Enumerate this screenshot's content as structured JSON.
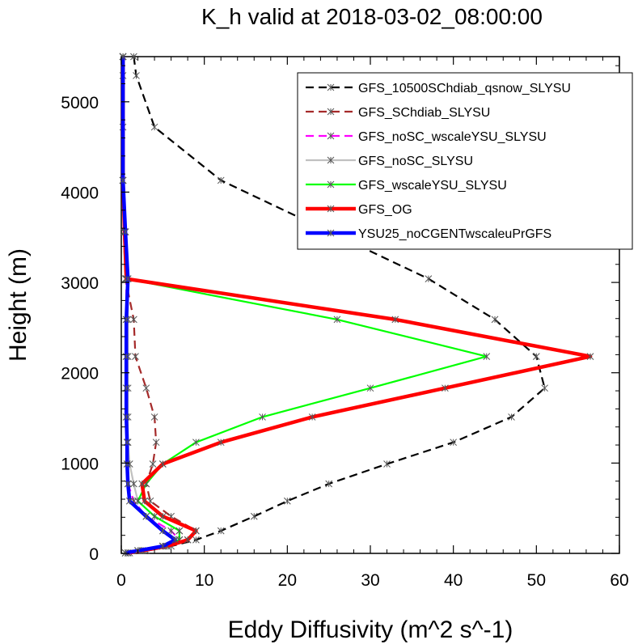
{
  "chart_data": {
    "type": "line",
    "title": "K_h valid at 2018-03-02_08:00:00",
    "xlabel": "Eddy Diffusivity (m^2 s^-1)",
    "ylabel": "Height (m)",
    "xlim": [
      0,
      60
    ],
    "ylim": [
      0,
      5500
    ],
    "xticks": [
      0,
      10,
      20,
      30,
      40,
      50,
      60
    ],
    "yticks": [
      0,
      1000,
      2000,
      3000,
      4000,
      5000
    ],
    "legend_position": "top-right",
    "grid": false,
    "series": [
      {
        "name": "GFS_10500SChdiab_qsnow_SLYSU",
        "color": "#000000",
        "width": 2.2,
        "dash": "10,6",
        "marker": "#555555",
        "points": [
          [
            1.5,
            5500
          ],
          [
            1.8,
            5290
          ],
          [
            4,
            4720
          ],
          [
            12,
            4130
          ],
          [
            37,
            3040
          ],
          [
            45,
            2590
          ],
          [
            50,
            2180
          ],
          [
            51,
            1830
          ],
          [
            47,
            1510
          ],
          [
            40,
            1230
          ],
          [
            32,
            990
          ],
          [
            25,
            770
          ],
          [
            20,
            580
          ],
          [
            16,
            410
          ],
          [
            12,
            250
          ],
          [
            9,
            150
          ],
          [
            6,
            80
          ],
          [
            3,
            30
          ],
          [
            1,
            5
          ]
        ]
      },
      {
        "name": "GFS_SChdiab_SLYSU",
        "color": "#a52a2a",
        "width": 2.2,
        "dash": "10,6",
        "marker": "#555555",
        "points": [
          [
            0.2,
            5500
          ],
          [
            0.2,
            5290
          ],
          [
            0.2,
            4720
          ],
          [
            0.2,
            4130
          ],
          [
            0.3,
            3560
          ],
          [
            0.5,
            3040
          ],
          [
            1.5,
            2590
          ],
          [
            1.7,
            2180
          ],
          [
            3,
            1830
          ],
          [
            4,
            1510
          ],
          [
            4.2,
            1230
          ],
          [
            3.8,
            990
          ],
          [
            3,
            770
          ],
          [
            3.5,
            580
          ],
          [
            6,
            410
          ],
          [
            9,
            250
          ],
          [
            8,
            150
          ],
          [
            5.5,
            80
          ],
          [
            2.5,
            30
          ],
          [
            0.8,
            5
          ]
        ]
      },
      {
        "name": "GFS_noSC_wscaleYSU_SLYSU",
        "color": "#ff00ff",
        "width": 2.2,
        "dash": "10,6",
        "marker": "#555555",
        "points": [
          [
            0.2,
            5500
          ],
          [
            0.2,
            4130
          ],
          [
            0.4,
            3560
          ],
          [
            0.6,
            3040
          ],
          [
            0.6,
            2590
          ],
          [
            0.6,
            2180
          ],
          [
            0.6,
            1830
          ],
          [
            0.6,
            1510
          ],
          [
            0.7,
            1230
          ],
          [
            0.7,
            990
          ],
          [
            0.8,
            770
          ],
          [
            1.5,
            580
          ],
          [
            3,
            410
          ],
          [
            6,
            250
          ],
          [
            7,
            150
          ],
          [
            5,
            80
          ],
          [
            2,
            30
          ],
          [
            0.5,
            5
          ]
        ]
      },
      {
        "name": "GFS_noSC_SLYSU",
        "color": "#c0c0c0",
        "width": 2.2,
        "dash": "",
        "marker": "#555555",
        "points": [
          [
            0.2,
            5500
          ],
          [
            0.2,
            4130
          ],
          [
            0.5,
            3560
          ],
          [
            0.8,
            3040
          ],
          [
            0.8,
            2590
          ],
          [
            0.8,
            2180
          ],
          [
            0.8,
            1830
          ],
          [
            0.8,
            1510
          ],
          [
            0.8,
            1230
          ],
          [
            1,
            990
          ],
          [
            1.5,
            770
          ],
          [
            2,
            580
          ],
          [
            4,
            410
          ],
          [
            7,
            250
          ],
          [
            7,
            150
          ],
          [
            5,
            80
          ],
          [
            2,
            30
          ],
          [
            0.5,
            5
          ]
        ]
      },
      {
        "name": "GFS_wscaleYSU_SLYSU",
        "color": "#00ff00",
        "width": 2.2,
        "dash": "",
        "marker": "#555555",
        "points": [
          [
            0.2,
            5500
          ],
          [
            0.2,
            4130
          ],
          [
            0.4,
            3560
          ],
          [
            0.6,
            3040
          ],
          [
            26,
            2590
          ],
          [
            44,
            2180
          ],
          [
            30,
            1830
          ],
          [
            17,
            1510
          ],
          [
            9,
            1230
          ],
          [
            5,
            990
          ],
          [
            3,
            770
          ],
          [
            2,
            580
          ],
          [
            4,
            410
          ],
          [
            7,
            250
          ],
          [
            7,
            150
          ],
          [
            5,
            80
          ],
          [
            2,
            30
          ],
          [
            0.5,
            5
          ]
        ]
      },
      {
        "name": "GFS_OG",
        "color": "#ff0000",
        "width": 4.5,
        "dash": "",
        "marker": "#555555",
        "points": [
          [
            0.2,
            5500
          ],
          [
            0.2,
            4130
          ],
          [
            0.4,
            3560
          ],
          [
            0.6,
            3040
          ],
          [
            33,
            2590
          ],
          [
            56.5,
            2180
          ],
          [
            39,
            1830
          ],
          [
            23,
            1510
          ],
          [
            12,
            1230
          ],
          [
            5,
            990
          ],
          [
            2.5,
            770
          ],
          [
            2.8,
            580
          ],
          [
            5,
            410
          ],
          [
            9,
            250
          ],
          [
            8,
            150
          ],
          [
            5.5,
            80
          ],
          [
            2.5,
            30
          ],
          [
            0.8,
            5
          ]
        ]
      },
      {
        "name": "YSU25_noCGENTwscaleuPrGFS",
        "color": "#0000ff",
        "width": 4.5,
        "dash": "",
        "marker": "#555555",
        "points": [
          [
            0.2,
            5500
          ],
          [
            0.2,
            4130
          ],
          [
            0.5,
            3560
          ],
          [
            0.8,
            3040
          ],
          [
            0.6,
            2590
          ],
          [
            0.6,
            2180
          ],
          [
            0.6,
            1830
          ],
          [
            0.6,
            1510
          ],
          [
            0.7,
            1230
          ],
          [
            0.7,
            990
          ],
          [
            0.8,
            770
          ],
          [
            1,
            580
          ],
          [
            3,
            410
          ],
          [
            5,
            250
          ],
          [
            6.5,
            150
          ],
          [
            5,
            80
          ],
          [
            2,
            30
          ],
          [
            0.5,
            5
          ]
        ]
      }
    ]
  }
}
